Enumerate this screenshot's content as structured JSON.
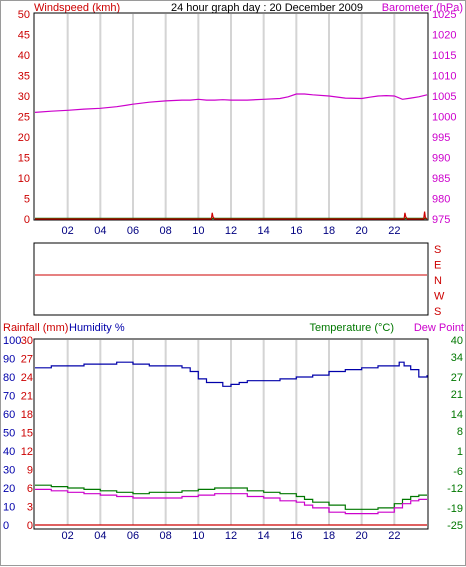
{
  "header": {
    "title": "24 hour graph day : 20 December 2009",
    "left_label": "Windspeed (kmh)",
    "right_label": "Barometer (hPa)"
  },
  "colors": {
    "wind": "#cc0000",
    "baro": "#cc00cc",
    "rain": "#cc0000",
    "humidity": "#0000aa",
    "temperature": "#007700",
    "dewpoint": "#cc00cc",
    "grid": "#d4d4d4"
  },
  "chart_data": [
    {
      "type": "line",
      "name": "wind-baro",
      "x_ticks": [
        "02",
        "04",
        "06",
        "08",
        "10",
        "12",
        "14",
        "16",
        "18",
        "20",
        "22"
      ],
      "y_left_ticks": [
        "0",
        "5",
        "10",
        "15",
        "20",
        "25",
        "30",
        "35",
        "40",
        "45",
        "50"
      ],
      "y_right_ticks": [
        "975",
        "980",
        "985",
        "990",
        "995",
        "1000",
        "1005",
        "1010",
        "1015",
        "1020",
        "1025"
      ],
      "ylim_left": [
        0,
        50
      ],
      "ylim_right": [
        975,
        1025
      ],
      "series": [
        {
          "name": "Barometer",
          "axis": "right",
          "x": [
            0,
            1,
            2,
            3,
            4,
            5,
            6,
            7,
            8,
            9,
            9.5,
            10,
            10.5,
            11,
            11.5,
            12,
            13,
            14,
            15,
            15.5,
            16,
            16.5,
            17,
            18,
            19,
            20,
            20.5,
            21,
            21.5,
            22,
            22.5,
            23,
            23.5,
            24
          ],
          "y": [
            1001,
            1001.3,
            1001.5,
            1001.8,
            1002,
            1002.4,
            1003,
            1003.5,
            1003.8,
            1004,
            1004,
            1004.2,
            1004,
            1004,
            1004.1,
            1004,
            1004,
            1004.2,
            1004.4,
            1004.8,
            1005.5,
            1005.5,
            1005.3,
            1005,
            1004.5,
            1004.4,
            1004.7,
            1005,
            1005.1,
            1005,
            1004.2,
            1004.5,
            1004.8,
            1005.3
          ]
        },
        {
          "name": "Windspeed",
          "axis": "left",
          "x": [
            0,
            10.8,
            10.85,
            10.9,
            11,
            22.6,
            22.65,
            22.7,
            22.8,
            23.8,
            23.85,
            23.9,
            24
          ],
          "y": [
            0,
            0,
            1.5,
            0.5,
            0,
            0,
            1.5,
            0.5,
            0,
            0,
            1.8,
            0.3,
            0
          ]
        }
      ]
    },
    {
      "type": "line",
      "name": "wind-direction",
      "y_labels": [
        "S",
        "E",
        "N",
        "W",
        "S"
      ],
      "series": [
        {
          "name": "Direction",
          "x": [
            0,
            24
          ],
          "y": [
            180,
            180
          ]
        }
      ]
    },
    {
      "type": "line",
      "name": "rain-humidity-temp",
      "left_title": "Rainfall (mm)",
      "humidity_title": "Humidity %",
      "temp_title": "Temperature (°C)",
      "dew_title": "Dew Point",
      "x_ticks": [
        "02",
        "04",
        "06",
        "08",
        "10",
        "12",
        "14",
        "16",
        "18",
        "20",
        "22"
      ],
      "y_rain_ticks": [
        "0",
        "3",
        "6",
        "9",
        "12",
        "15",
        "18",
        "21",
        "24",
        "27",
        "30"
      ],
      "y_hum_ticks": [
        "0",
        "10",
        "20",
        "30",
        "40",
        "50",
        "60",
        "70",
        "80",
        "90",
        "100"
      ],
      "y_temp_ticks": [
        "-25",
        "-19",
        "-12",
        "-6",
        "1",
        "8",
        "14",
        "21",
        "27",
        "34",
        "40"
      ],
      "ylim_rain": [
        0,
        30
      ],
      "ylim_hum": [
        0,
        100
      ],
      "ylim_temp": [
        -25,
        40
      ],
      "series": [
        {
          "name": "Humidity",
          "axis": "hum",
          "x": [
            0,
            1,
            2,
            3,
            4,
            5,
            6,
            7,
            8,
            9,
            9.5,
            10,
            10.5,
            11,
            11.5,
            12,
            12.5,
            13,
            14,
            15,
            16,
            17,
            18,
            19,
            20,
            21,
            22,
            22.3,
            22.6,
            23,
            23.5,
            24
          ],
          "y": [
            85,
            86,
            86,
            87,
            87,
            88,
            87,
            86,
            86,
            85,
            83,
            79,
            77,
            77,
            75,
            76,
            77,
            78,
            78,
            79,
            80,
            81,
            83,
            84,
            85,
            86,
            86,
            88,
            86,
            84,
            80,
            81
          ]
        },
        {
          "name": "Temperature",
          "axis": "temp",
          "x": [
            0,
            1,
            2,
            3,
            4,
            5,
            6,
            7,
            8,
            9,
            10,
            11,
            12,
            13,
            14,
            15,
            16,
            16.5,
            17,
            18,
            19,
            20,
            21,
            22,
            22.5,
            23,
            23.5,
            24
          ],
          "y": [
            -11,
            -11.5,
            -12,
            -12.5,
            -13,
            -13.5,
            -14,
            -13.5,
            -13.5,
            -13,
            -12.5,
            -12,
            -12,
            -13,
            -13.5,
            -14,
            -15,
            -16,
            -17,
            -18,
            -19.5,
            -19.5,
            -19,
            -17.5,
            -16,
            -15,
            -14.5,
            -14.5
          ]
        },
        {
          "name": "Dew Point",
          "axis": "temp",
          "x": [
            0,
            1,
            2,
            3,
            4,
            5,
            6,
            7,
            8,
            9,
            10,
            11,
            12,
            13,
            14,
            15,
            16,
            16.5,
            17,
            18,
            19,
            20,
            21,
            22,
            22.5,
            23,
            23.5,
            24
          ],
          "y": [
            -12.5,
            -13,
            -13.5,
            -14,
            -14.5,
            -15,
            -15.5,
            -15.5,
            -15.5,
            -15,
            -14.5,
            -14,
            -14,
            -15,
            -15.5,
            -16.5,
            -17,
            -18,
            -19,
            -20.5,
            -21,
            -21,
            -20.5,
            -19,
            -17.5,
            -16.5,
            -16,
            -16
          ]
        },
        {
          "name": "Rainfall",
          "axis": "rain",
          "x": [
            0,
            24
          ],
          "y": [
            0,
            0
          ]
        }
      ]
    }
  ]
}
